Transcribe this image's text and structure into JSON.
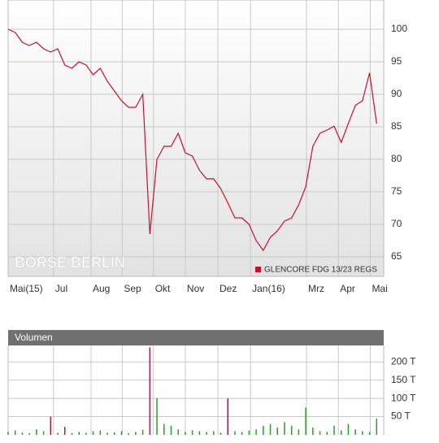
{
  "chart_data": [
    {
      "type": "line",
      "series": [
        {
          "name": "GLENCORE FDG 13/23 REGS",
          "color": "#c8102e",
          "values": [
            100,
            99.5,
            98,
            97.5,
            98,
            97,
            96.5,
            97,
            94.5,
            94,
            95,
            94.5,
            93,
            94,
            92,
            90.5,
            89,
            88,
            88,
            90,
            68.5,
            80,
            82,
            82,
            84,
            81,
            80.5,
            78.3,
            77,
            77,
            75.5,
            73.3,
            71,
            71,
            70,
            67.5,
            66,
            68,
            69,
            70.5,
            71,
            73,
            75.8,
            82,
            84,
            84.5,
            85.1,
            82.6,
            85.5,
            88.3,
            89,
            93.3,
            85.5
          ]
        }
      ],
      "xlim": [
        0,
        53
      ],
      "xticks": [
        {
          "value": 0,
          "label": "Mai(15)"
        },
        {
          "value": 6.4,
          "label": "Jul"
        },
        {
          "value": 11.7,
          "label": "Aug"
        },
        {
          "value": 16.1,
          "label": "Sep"
        },
        {
          "value": 20.5,
          "label": "Okt"
        },
        {
          "value": 25,
          "label": "Nov"
        },
        {
          "value": 29.6,
          "label": "Dez"
        },
        {
          "value": 34.2,
          "label": "Jan(16)"
        },
        {
          "value": 42.1,
          "label": "Mrz"
        },
        {
          "value": 46.6,
          "label": "Apr"
        },
        {
          "value": 51.1,
          "label": "Mai"
        }
      ],
      "ylim": [
        62,
        104.5
      ],
      "yticks": [
        65,
        70,
        75,
        80,
        85,
        90,
        95,
        100
      ],
      "grid": true,
      "legend": "bottom-right",
      "watermark": "BÖRSE BERLIN"
    },
    {
      "type": "bar",
      "title": "Volumen",
      "values": [
        8,
        12,
        6,
        5,
        15,
        10,
        50,
        6,
        22,
        5,
        8,
        6,
        10,
        12,
        6,
        7,
        10,
        5,
        8,
        14,
        240,
        100,
        30,
        25,
        15,
        8,
        12,
        10,
        8,
        10,
        6,
        100,
        10,
        8,
        12,
        15,
        25,
        30,
        20,
        35,
        25,
        15,
        75,
        20,
        10,
        8,
        25,
        12,
        30,
        15,
        10,
        8,
        45
      ],
      "colors": [
        "#2a9d2a",
        "#2a9d2a",
        "#2a9d2a",
        "#2a9d2a",
        "#2a9d2a",
        "#2a9d2a",
        "#9e1f4a",
        "#2a9d2a",
        "#9e1f4a",
        "#2a9d2a",
        "#2a9d2a",
        "#2a9d2a",
        "#2a9d2a",
        "#2a9d2a",
        "#2a9d2a",
        "#2a9d2a",
        "#2a9d2a",
        "#2a9d2a",
        "#2a9d2a",
        "#2a9d2a",
        "#9e1f4a",
        "#2a9d2a",
        "#2a9d2a",
        "#2a9d2a",
        "#2a9d2a",
        "#2a9d2a",
        "#2a9d2a",
        "#2a9d2a",
        "#2a9d2a",
        "#2a9d2a",
        "#2a9d2a",
        "#9e1f4a",
        "#2a9d2a",
        "#2a9d2a",
        "#2a9d2a",
        "#2a9d2a",
        "#2a9d2a",
        "#2a9d2a",
        "#2a9d2a",
        "#2a9d2a",
        "#2a9d2a",
        "#2a9d2a",
        "#2a9d2a",
        "#2a9d2a",
        "#2a9d2a",
        "#2a9d2a",
        "#2a9d2a",
        "#2a9d2a",
        "#2a9d2a",
        "#2a9d2a",
        "#2a9d2a",
        "#2a9d2a",
        "#2a9d2a"
      ],
      "xlim": [
        0,
        53
      ],
      "ylim": [
        0,
        245
      ],
      "yticks": [
        {
          "value": 50,
          "label": "50 T"
        },
        {
          "value": 100,
          "label": "100 T"
        },
        {
          "value": 150,
          "label": "150 T"
        },
        {
          "value": 200,
          "label": "200 T"
        }
      ],
      "grid": true
    }
  ]
}
